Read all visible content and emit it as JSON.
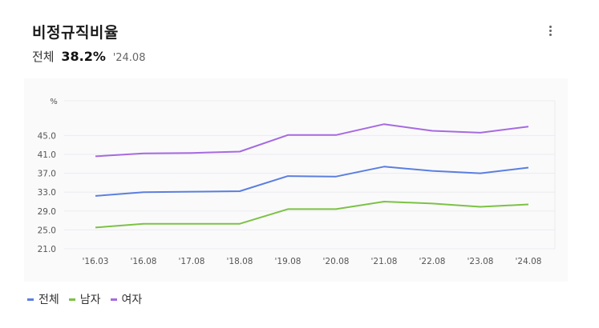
{
  "header": {
    "title": "비정규직비율",
    "summary_label": "전체",
    "summary_value": "38.2%",
    "summary_date": "'24.08"
  },
  "colors": {
    "total": "#5b7fe0",
    "male": "#7cc244",
    "female": "#a66ae0"
  },
  "chart_data": {
    "type": "line",
    "title": "비정규직비율",
    "ylabel": "%",
    "ylim": [
      21.0,
      49.0
    ],
    "yticks": [
      "21.0",
      "25.0",
      "29.0",
      "33.0",
      "37.0",
      "41.0",
      "45.0"
    ],
    "categories": [
      "'16.03",
      "'16.08",
      "'17.08",
      "'18.08",
      "'19.08",
      "'20.08",
      "'21.08",
      "'22.08",
      "'23.08",
      "'24.08"
    ],
    "series": [
      {
        "name": "전체",
        "values": [
          32.2,
          33.0,
          33.1,
          33.2,
          36.4,
          36.3,
          38.4,
          37.5,
          37.0,
          38.2
        ]
      },
      {
        "name": "남자",
        "values": [
          25.5,
          26.3,
          26.3,
          26.3,
          29.4,
          29.4,
          31.0,
          30.6,
          29.9,
          30.4
        ]
      },
      {
        "name": "여자",
        "values": [
          40.6,
          41.2,
          41.3,
          41.6,
          45.1,
          45.1,
          47.4,
          46.0,
          45.6,
          46.9
        ]
      }
    ],
    "grid": true,
    "legend": "bottom-left"
  },
  "legend": [
    {
      "label": "전체",
      "color_key": "total"
    },
    {
      "label": "남자",
      "color_key": "male"
    },
    {
      "label": "여자",
      "color_key": "female"
    }
  ]
}
